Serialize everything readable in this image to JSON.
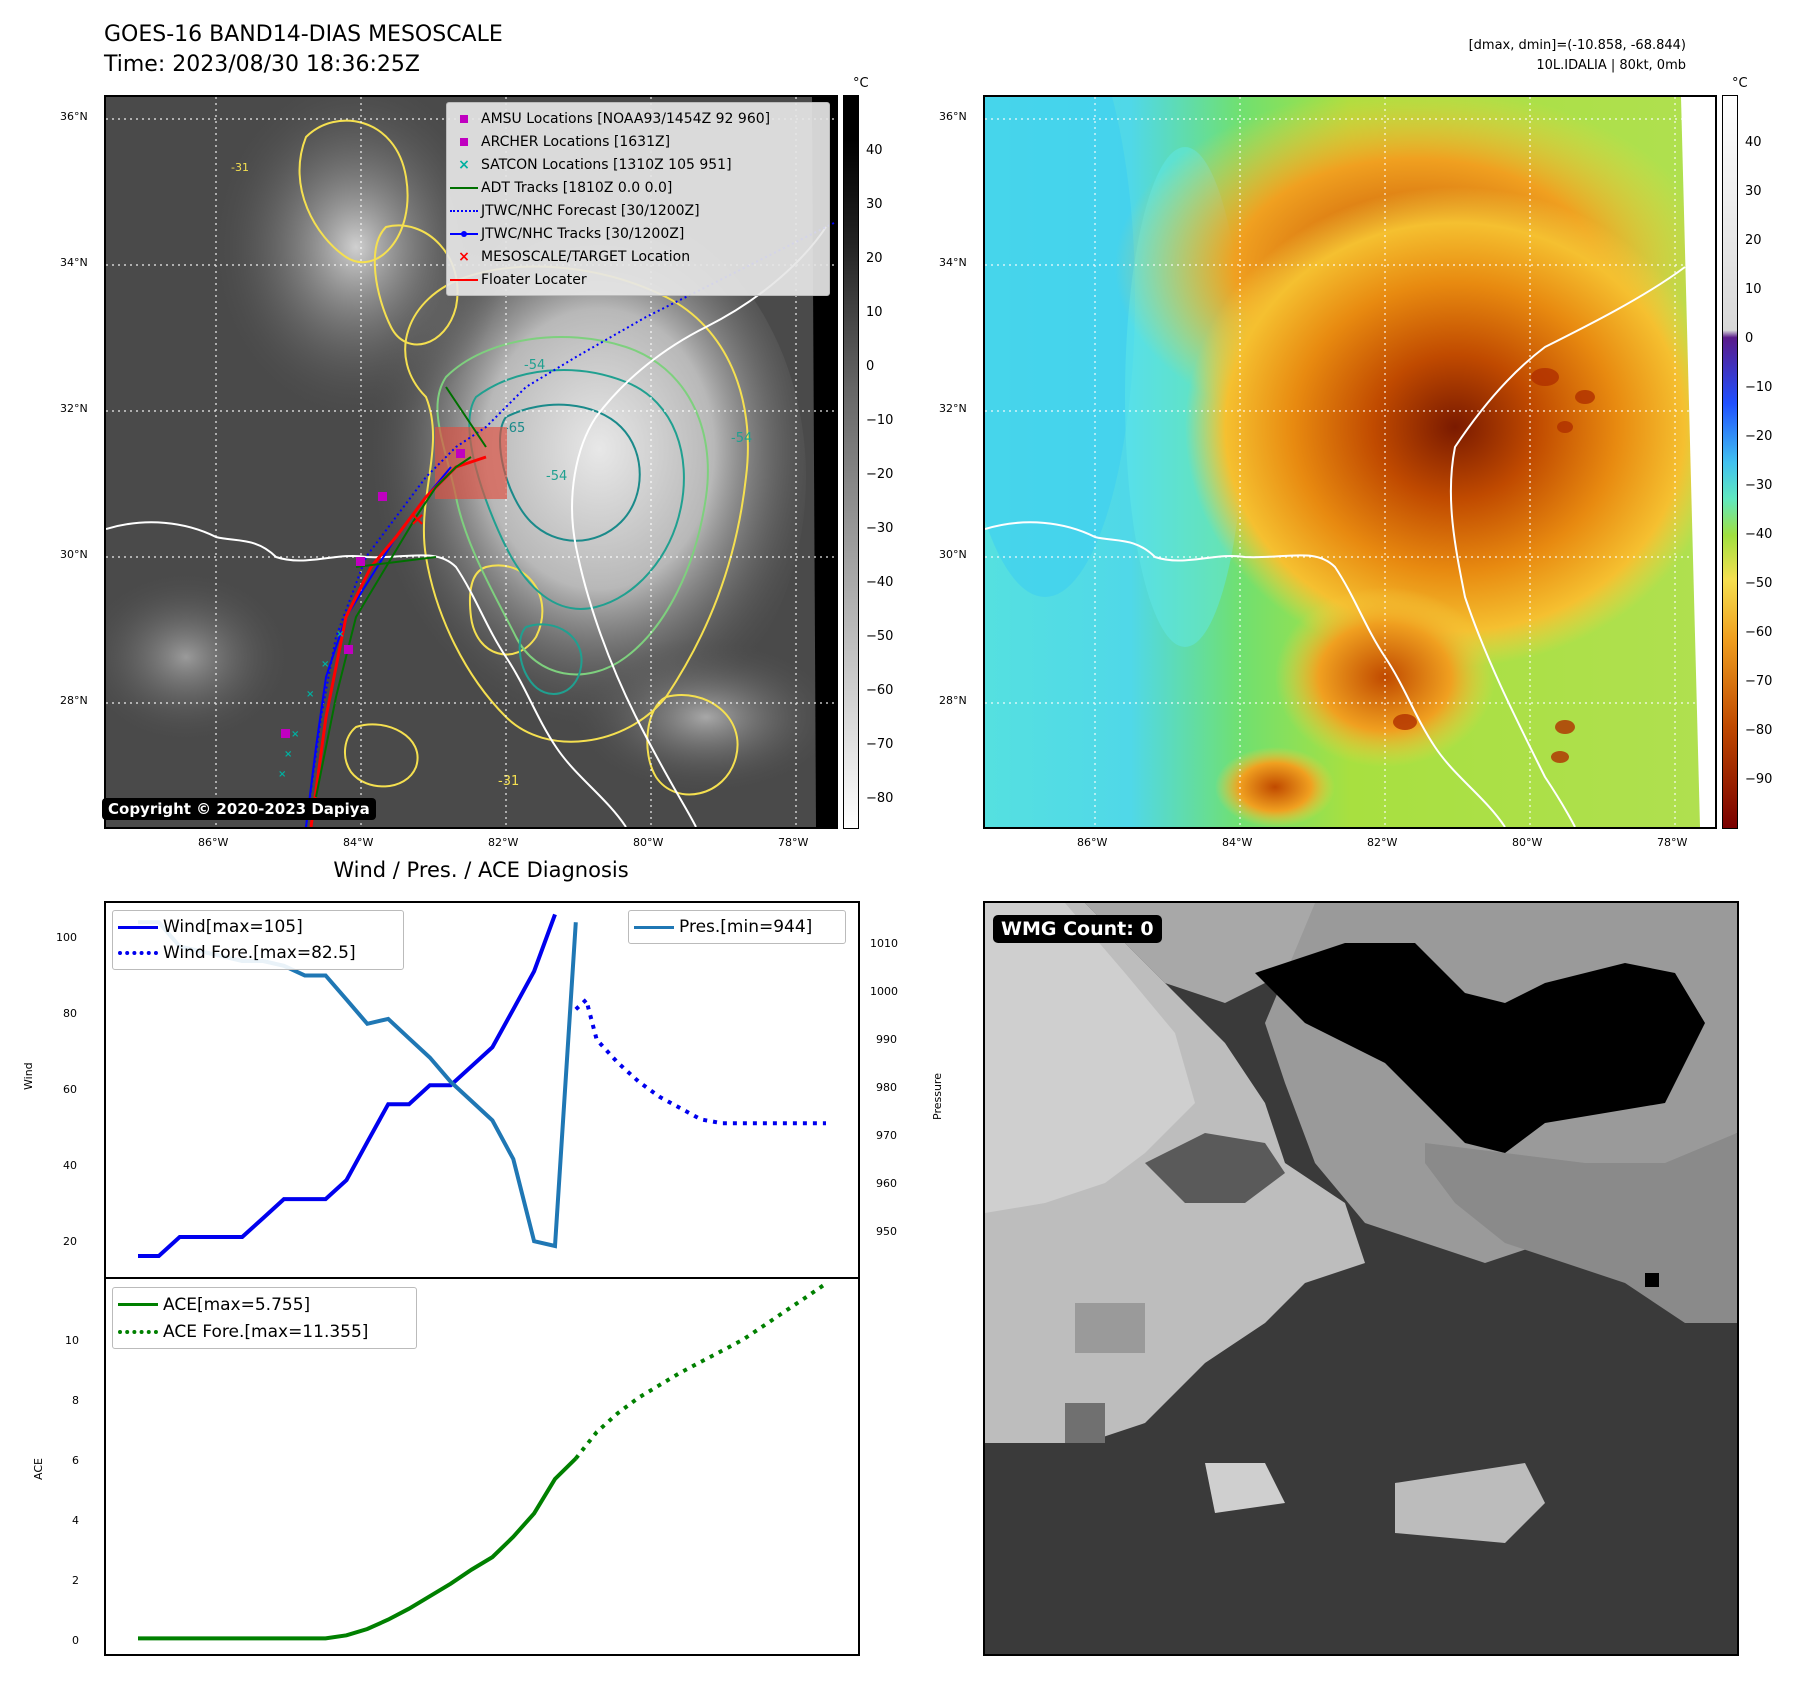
{
  "header": {
    "title": "GOES-16 BAND14-DIAS MESOSCALE",
    "time": "Time: 2023/08/30 18:36:25Z",
    "dmax_dmin": "[dmax, dmin]=(-10.858, -68.844)",
    "storm_info": "10L.IDALIA | 80kt, 0mb"
  },
  "map_ir": {
    "lat_labels": [
      "36°N",
      "34°N",
      "32°N",
      "30°N",
      "28°N"
    ],
    "lon_labels": [
      "86°W",
      "84°W",
      "82°W",
      "80°W",
      "78°W"
    ],
    "contour_labels": [
      "-31",
      "-54",
      "-65",
      "-54",
      "-54",
      "-31"
    ],
    "copyright": "Copyright © 2020-2023 Dapiya",
    "colorbar_unit": "°C",
    "colorbar_ticks": [
      "40",
      "30",
      "20",
      "10",
      "0",
      "−10",
      "−20",
      "−30",
      "−40",
      "−50",
      "−60",
      "−70",
      "−80"
    ],
    "legend": [
      {
        "label": "AMSU Locations [NOAA93/1454Z 92 960]",
        "color": "#c000c0",
        "marker": "square"
      },
      {
        "label": "ARCHER Locations [1631Z]",
        "color": "#c000c0",
        "marker": "square"
      },
      {
        "label": "SATCON Locations [1310Z 105 951]",
        "color": "#00b0a0",
        "marker": "x"
      },
      {
        "label": "ADT Tracks [1810Z 0.0 0.0]",
        "color": "#007000",
        "marker": "line"
      },
      {
        "label": "JTWC/NHC Forecast [30/1200Z]",
        "color": "#0000ff",
        "marker": "dotted"
      },
      {
        "label": "JTWC/NHC Tracks [30/1200Z]",
        "color": "#0000ff",
        "marker": "line-dot"
      },
      {
        "label": "MESOSCALE/TARGET Location",
        "color": "#ff0000",
        "marker": "x"
      },
      {
        "label": "Floater Locater",
        "color": "#ff0000",
        "marker": "line"
      }
    ]
  },
  "map_color": {
    "lat_labels": [
      "36°N",
      "34°N",
      "32°N",
      "30°N",
      "28°N"
    ],
    "lon_labels": [
      "86°W",
      "84°W",
      "82°W",
      "80°W",
      "78°W"
    ],
    "colorbar_unit": "°C",
    "colorbar_ticks": [
      "40",
      "30",
      "20",
      "10",
      "0",
      "−10",
      "−20",
      "−30",
      "−40",
      "−50",
      "−60",
      "−70",
      "−80",
      "−90"
    ]
  },
  "diagnosis": {
    "title": "Wind / Pres. / ACE Diagnosis",
    "wind_ylabel": "Wind",
    "pres_ylabel": "Pressure",
    "ace_ylabel": "ACE",
    "legend_wind": "Wind[max=105]",
    "legend_wind_fore": "Wind Fore.[max=82.5]",
    "legend_pres": "Pres.[min=944]",
    "legend_ace": "ACE[max=5.755]",
    "legend_ace_fore": "ACE Fore.[max=11.355]",
    "wind_ticks": [
      "100",
      "80",
      "60",
      "40",
      "20"
    ],
    "pres_ticks": [
      "1010",
      "1000",
      "990",
      "980",
      "970",
      "960",
      "950"
    ],
    "ace_ticks": [
      "10",
      "8",
      "6",
      "4",
      "2",
      "0"
    ]
  },
  "wmg": {
    "label": "WMG Count: 0"
  },
  "chart_data": [
    {
      "type": "line",
      "title": "Wind / Pres. / ACE Diagnosis",
      "ylabel": "Wind",
      "ylim": [
        10,
        108
      ],
      "series": [
        {
          "name": "Wind[max=105]",
          "style": "solid",
          "color": "#0000ee",
          "x": [
            0,
            1,
            2,
            3,
            4,
            5,
            6,
            7,
            8,
            9,
            10,
            11,
            12,
            13,
            14,
            15,
            16,
            17,
            18,
            19,
            20
          ],
          "values": [
            15,
            15,
            20,
            20,
            20,
            20,
            25,
            30,
            30,
            30,
            35,
            45,
            55,
            55,
            60,
            60,
            65,
            70,
            80,
            90,
            105
          ]
        },
        {
          "name": "Wind Fore.[max=82.5]",
          "style": "dotted",
          "color": "#0000ee",
          "x": [
            21,
            21.5,
            22,
            23,
            24,
            25,
            26,
            27,
            28,
            29,
            30,
            31,
            32,
            33
          ],
          "values": [
            80,
            82.5,
            72,
            66,
            61,
            57,
            54,
            51,
            50,
            50,
            50,
            50,
            50,
            50
          ]
        }
      ]
    },
    {
      "type": "line",
      "ylabel": "Pressure",
      "ylim": [
        938,
        1015
      ],
      "series": [
        {
          "name": "Pres.[min=944]",
          "style": "solid",
          "color": "#1f77b4",
          "x": [
            0,
            1,
            2,
            3,
            4,
            5,
            6,
            7,
            8,
            9,
            10,
            11,
            12,
            13,
            14,
            15,
            16,
            17,
            18,
            19,
            20,
            21
          ],
          "values": [
            1011,
            1011,
            1006,
            1005,
            1004,
            1003,
            1003,
            1002,
            1000,
            1000,
            995,
            990,
            991,
            987,
            983,
            978,
            974,
            970,
            962,
            945,
            944,
            1011
          ]
        }
      ]
    },
    {
      "type": "line",
      "ylabel": "ACE",
      "ylim": [
        -0.5,
        11.5
      ],
      "series": [
        {
          "name": "ACE[max=5.755]",
          "style": "solid",
          "color": "#008000",
          "x": [
            0,
            1,
            2,
            3,
            4,
            5,
            6,
            7,
            8,
            9,
            10,
            11,
            12,
            13,
            14,
            15,
            16,
            17,
            18,
            19,
            20,
            21
          ],
          "values": [
            0,
            0,
            0,
            0,
            0,
            0,
            0,
            0,
            0,
            0,
            0.1,
            0.3,
            0.6,
            0.95,
            1.35,
            1.75,
            2.2,
            2.6,
            3.25,
            4.0,
            5.1,
            5.755
          ]
        },
        {
          "name": "ACE Fore.[max=11.355]",
          "style": "dotted",
          "color": "#008000",
          "x": [
            21,
            22,
            23,
            24,
            25,
            26,
            27,
            28,
            29,
            30,
            31,
            32,
            33
          ],
          "values": [
            5.755,
            6.6,
            7.2,
            7.7,
            8.1,
            8.5,
            8.85,
            9.2,
            9.55,
            10.0,
            10.45,
            10.9,
            11.355
          ]
        }
      ]
    }
  ]
}
